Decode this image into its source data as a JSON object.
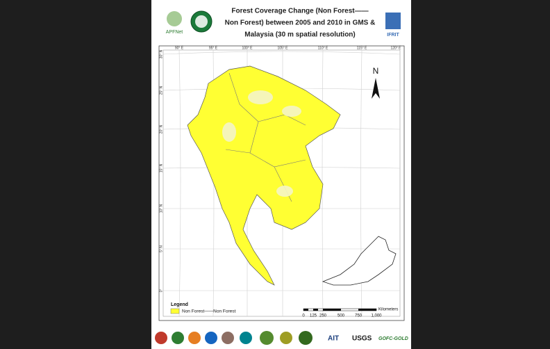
{
  "header": {
    "logo_left": "APFNet",
    "logo_right": "IFRIT",
    "title": [
      "Forest Coverage Change (Non Forest——",
      "Non Forest)  between 2005 and 2010 in GMS &",
      "Malaysia  (30 m spatial resolution)"
    ]
  },
  "map": {
    "north": "N",
    "lon_labels": [
      "90° E",
      "95° E",
      "100° E",
      "105° E",
      "110° E",
      "115° E",
      "120° E"
    ],
    "lat_labels": [
      "30° N",
      "25° N",
      "20° N",
      "15° N",
      "10° N",
      "5° N",
      "0°"
    ]
  },
  "legend": {
    "title": "Legend",
    "item": "Non Forest——Non Forest"
  },
  "scale_bar": {
    "ticks": [
      "0",
      "125",
      "250",
      "500",
      "750",
      "1,000"
    ],
    "unit": "Kilometers"
  },
  "footer": {
    "logos": [
      "AIT",
      "USGS",
      "GOFC-GOLD"
    ]
  }
}
